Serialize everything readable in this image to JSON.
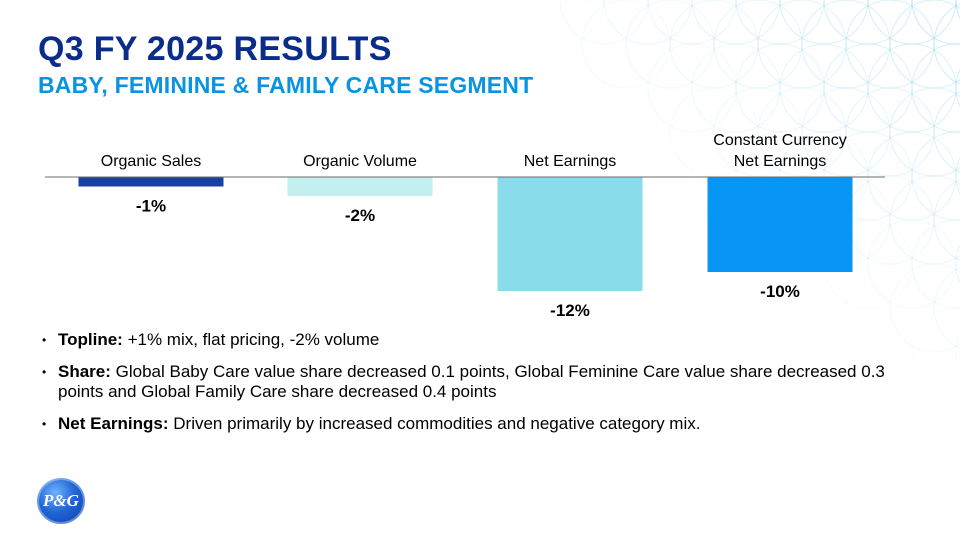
{
  "slide": {
    "title": "Q3 FY 2025 RESULTS",
    "subtitle": "BABY, FEMININE & FAMILY CARE SEGMENT"
  },
  "chart_data": {
    "type": "bar",
    "categories": [
      [
        "Organic Sales"
      ],
      [
        "Organic Volume"
      ],
      [
        "Net Earnings"
      ],
      [
        "Constant Currency",
        "Net Earnings"
      ]
    ],
    "values": [
      -1,
      -2,
      -12,
      -10
    ],
    "data_labels": [
      "-1%",
      "-2%",
      "-12%",
      "-10%"
    ],
    "colors": [
      "#1a3fa3",
      "#c3efef",
      "#8adceb",
      "#0896f5"
    ],
    "ylim": [
      -12,
      0
    ],
    "grid": false,
    "legend": "none"
  },
  "bullets": [
    {
      "label": "Topline:",
      "text": " +1% mix, flat pricing, -2% volume"
    },
    {
      "label": "Share:",
      "text": " Global Baby Care value share decreased 0.1 points, Global Feminine Care value share decreased 0.3 points and Global Family Care share decreased 0.4 points"
    },
    {
      "label": "Net Earnings:",
      "text": " Driven primarily by increased commodities and negative category mix."
    }
  ],
  "bullet_glyph": "•",
  "logo": {
    "text": "P&G",
    "color": "#1f66d6"
  }
}
